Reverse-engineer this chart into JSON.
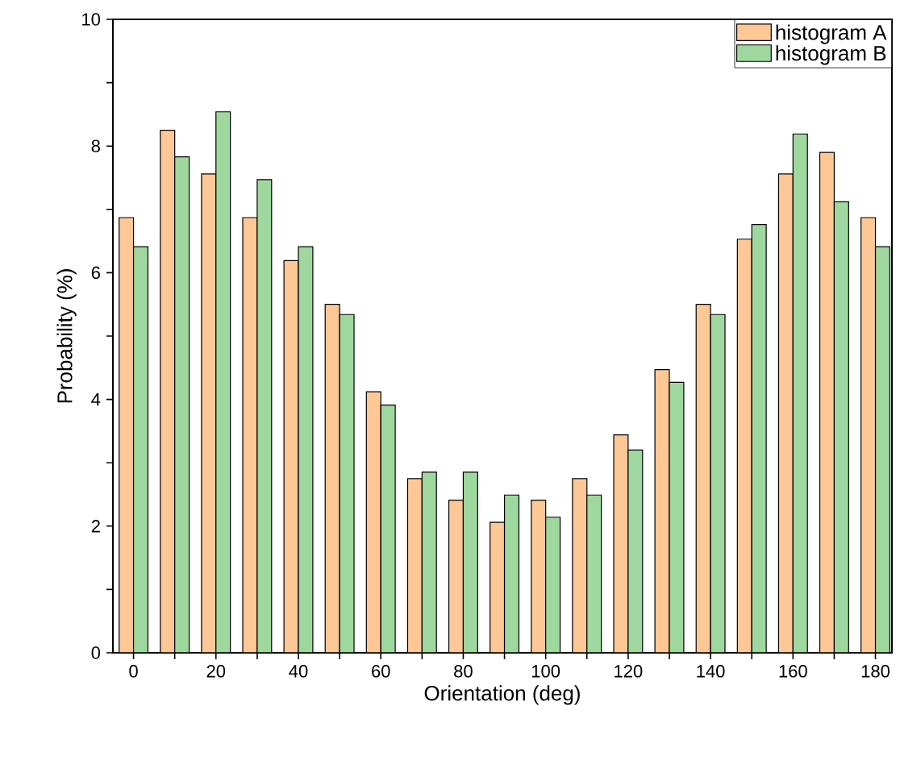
{
  "chart_data": {
    "type": "bar",
    "xlabel": "Orientation (deg)",
    "ylabel": "Probability (%)",
    "x": [
      0,
      10,
      20,
      30,
      40,
      50,
      60,
      70,
      80,
      90,
      100,
      110,
      120,
      130,
      140,
      150,
      160,
      170,
      180
    ],
    "series": [
      {
        "name": "histogram A",
        "color": "#fec896",
        "values": [
          6.87,
          8.25,
          7.56,
          6.87,
          6.19,
          5.5,
          4.12,
          2.75,
          2.41,
          2.06,
          2.41,
          2.75,
          3.44,
          4.47,
          5.5,
          6.53,
          7.56,
          7.9,
          6.87
        ]
      },
      {
        "name": "histogram B",
        "color": "#9fd89e",
        "values": [
          6.41,
          7.83,
          8.54,
          7.47,
          6.41,
          5.34,
          3.91,
          2.85,
          2.85,
          2.49,
          2.14,
          2.49,
          3.2,
          4.27,
          5.34,
          6.76,
          8.19,
          7.12,
          6.41
        ]
      }
    ],
    "xlim": [
      -5,
      184
    ],
    "ylim": [
      0,
      10
    ],
    "xticks": [
      0,
      {
        "value": 10,
        "label": null
      },
      20,
      {
        "value": 30,
        "label": null
      },
      40,
      {
        "value": 50,
        "label": null
      },
      60,
      {
        "value": 70,
        "label": null
      },
      80,
      {
        "value": 90,
        "label": null
      },
      100,
      {
        "value": 110,
        "label": null
      },
      120,
      {
        "value": 130,
        "label": null
      },
      140,
      {
        "value": 150,
        "label": null
      },
      160,
      {
        "value": 170,
        "label": null
      },
      180
    ],
    "yticks": [
      0,
      {
        "value": 1,
        "label": null
      },
      2,
      {
        "value": 3,
        "label": null
      },
      4,
      {
        "value": 5,
        "label": null
      },
      6,
      {
        "value": 7,
        "label": null
      },
      8,
      {
        "value": 9,
        "label": null
      },
      10
    ],
    "legend": "top right"
  }
}
